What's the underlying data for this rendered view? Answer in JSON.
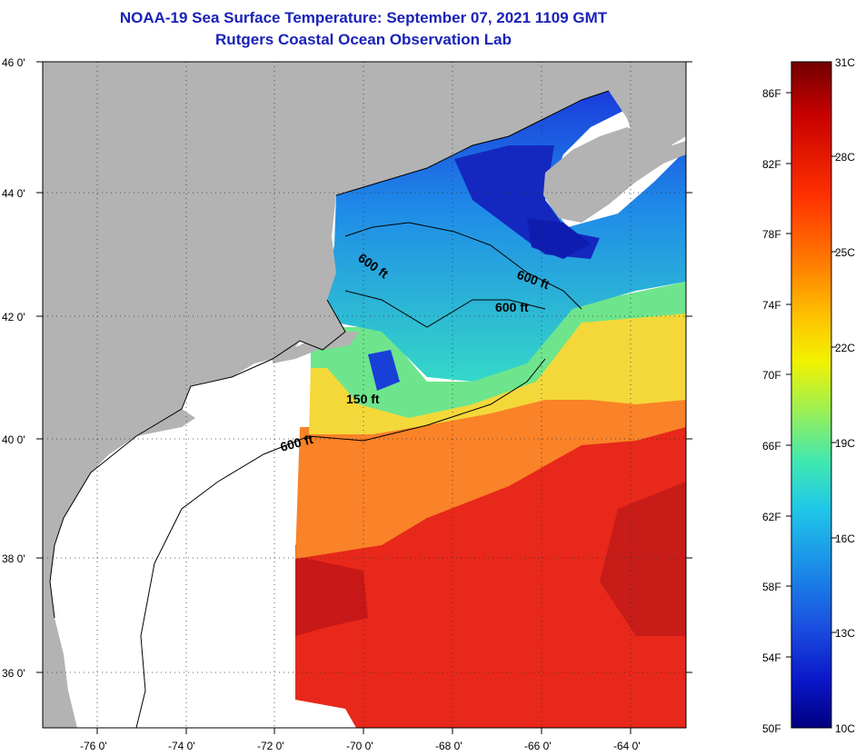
{
  "header": {
    "title": "NOAA-19 Sea Surface Temperature:  September 07, 2021 1109 GMT",
    "subtitle": "Rutgers Coastal Ocean Observation Lab"
  },
  "map": {
    "lat_labels": [
      "46 0'",
      "44 0'",
      "42 0'",
      "40 0'",
      "38 0'",
      "36 0'"
    ],
    "lon_labels": [
      "-76 0'",
      "-74 0'",
      "-72 0'",
      "-70 0'",
      "-68 0'",
      "-66 0'",
      "-64 0'"
    ],
    "contour_labels": [
      "600 ft",
      "600 ft",
      "600 ft",
      "150 ft",
      "600 ft"
    ],
    "colors": {
      "land": "#b3b3b3",
      "cloud": "#ffffff",
      "coastline": "#000000"
    }
  },
  "colorbar": {
    "fahrenheit_labels": [
      "86F",
      "82F",
      "78F",
      "74F",
      "70F",
      "66F",
      "62F",
      "58F",
      "54F",
      "50F"
    ],
    "celsius_labels": [
      "31C",
      "28C",
      "25C",
      "22C",
      "19C",
      "16C",
      "13C",
      "10C"
    ],
    "gradient_colors": [
      "#720000",
      "#c80000",
      "#ff3000",
      "#ff7a00",
      "#ffc000",
      "#f2f200",
      "#a0f050",
      "#40e8b0",
      "#20c8e8",
      "#1a8ce8",
      "#1a4ee0",
      "#0a16c8",
      "#000080"
    ]
  }
}
